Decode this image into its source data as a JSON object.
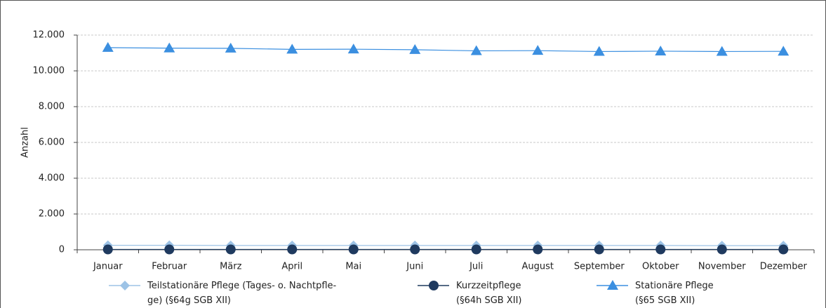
{
  "chart_data": {
    "type": "line",
    "y_label": "Anzahl",
    "categories": [
      "Januar",
      "Februar",
      "März",
      "April",
      "Mai",
      "Juni",
      "Juli",
      "August",
      "September",
      "Oktober",
      "November",
      "Dezember"
    ],
    "series": [
      {
        "name": "Teilstationäre Pflege (Tages- o. Nachtpfle-\nge) (§64g SGB XII)",
        "color": "#9dc3e6",
        "marker": "diamond",
        "values": [
          250,
          250,
          240,
          240,
          240,
          240,
          240,
          240,
          240,
          240,
          230,
          230
        ]
      },
      {
        "name": "Kurzzeitpflege\n(§64h SGB XII)",
        "color": "#1f3a5f",
        "marker": "circle",
        "values": [
          20,
          20,
          20,
          20,
          20,
          20,
          20,
          20,
          20,
          20,
          20,
          20
        ]
      },
      {
        "name": "Stationäre Pflege\n(§65 SGB XII)",
        "color": "#3b8fe0",
        "marker": "triangle",
        "values": [
          11300,
          11270,
          11260,
          11200,
          11210,
          11180,
          11120,
          11130,
          11080,
          11100,
          11080,
          11090
        ]
      }
    ],
    "ylim": [
      0,
      12000
    ],
    "yticks": [
      0,
      {
        "value": 2000,
        "label": "2.000"
      },
      {
        "value": 4000,
        "label": "4.000"
      },
      {
        "value": 6000,
        "label": "6.000"
      },
      {
        "value": 8000,
        "label": "8.000"
      },
      {
        "value": 10000,
        "label": "10.000"
      },
      {
        "value": 12000,
        "label": "12.000"
      }
    ],
    "grid": true
  }
}
